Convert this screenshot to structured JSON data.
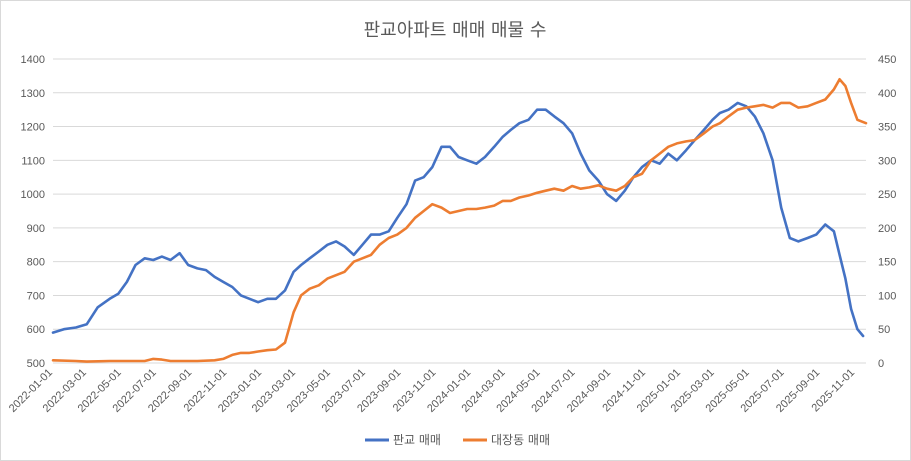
{
  "chart_data": {
    "type": "line",
    "title": "판교아파트 매매 매물 수",
    "xlabel": "",
    "ylabel": "",
    "grid": true,
    "legend_position": "bottom",
    "x_ticks": [
      "2022-01-01",
      "2022-03-01",
      "2022-05-01",
      "2022-07-01",
      "2022-09-01",
      "2022-11-01",
      "2023-01-01",
      "2023-03-01",
      "2023-05-01",
      "2023-07-01",
      "2023-09-01",
      "2023-11-01",
      "2024-01-01",
      "2024-03-01",
      "2024-05-01",
      "2024-07-01",
      "2024-09-01",
      "2024-11-01",
      "2025-01-01",
      "2025-03-01",
      "2025-05-01",
      "2025-07-01",
      "2025-09-01",
      "2025-11-01"
    ],
    "xlim": [
      "2022-01-01",
      "2025-11-20"
    ],
    "y_left": {
      "lim": [
        500,
        1400
      ],
      "ticks": [
        500,
        600,
        700,
        800,
        900,
        1000,
        1100,
        1200,
        1300,
        1400
      ]
    },
    "y_right": {
      "lim": [
        0,
        450
      ],
      "ticks": [
        0,
        50,
        100,
        150,
        200,
        250,
        300,
        350,
        400,
        450
      ]
    },
    "series": [
      {
        "name": "판교 매매",
        "axis": "left",
        "color": "#4472c4",
        "points": [
          [
            "2022-01-01",
            590
          ],
          [
            "2022-01-20",
            600
          ],
          [
            "2022-02-10",
            605
          ],
          [
            "2022-03-01",
            615
          ],
          [
            "2022-03-20",
            665
          ],
          [
            "2022-04-10",
            690
          ],
          [
            "2022-04-25",
            705
          ],
          [
            "2022-05-10",
            740
          ],
          [
            "2022-05-25",
            790
          ],
          [
            "2022-06-10",
            810
          ],
          [
            "2022-06-25",
            805
          ],
          [
            "2022-07-10",
            815
          ],
          [
            "2022-07-25",
            805
          ],
          [
            "2022-08-10",
            825
          ],
          [
            "2022-08-25",
            790
          ],
          [
            "2022-09-10",
            780
          ],
          [
            "2022-09-25",
            775
          ],
          [
            "2022-10-10",
            755
          ],
          [
            "2022-10-25",
            740
          ],
          [
            "2022-11-10",
            725
          ],
          [
            "2022-11-25",
            700
          ],
          [
            "2022-12-10",
            690
          ],
          [
            "2022-12-25",
            680
          ],
          [
            "2023-01-10",
            690
          ],
          [
            "2023-01-25",
            690
          ],
          [
            "2023-02-10",
            715
          ],
          [
            "2023-02-25",
            770
          ],
          [
            "2023-03-10",
            790
          ],
          [
            "2023-03-25",
            810
          ],
          [
            "2023-04-10",
            830
          ],
          [
            "2023-04-25",
            850
          ],
          [
            "2023-05-10",
            860
          ],
          [
            "2023-05-25",
            845
          ],
          [
            "2023-06-10",
            820
          ],
          [
            "2023-06-25",
            850
          ],
          [
            "2023-07-10",
            880
          ],
          [
            "2023-07-25",
            880
          ],
          [
            "2023-08-10",
            890
          ],
          [
            "2023-08-25",
            930
          ],
          [
            "2023-09-10",
            970
          ],
          [
            "2023-09-25",
            1040
          ],
          [
            "2023-10-10",
            1050
          ],
          [
            "2023-10-25",
            1080
          ],
          [
            "2023-11-10",
            1140
          ],
          [
            "2023-11-25",
            1140
          ],
          [
            "2023-12-10",
            1110
          ],
          [
            "2023-12-25",
            1100
          ],
          [
            "2024-01-10",
            1090
          ],
          [
            "2024-01-25",
            1110
          ],
          [
            "2024-02-10",
            1140
          ],
          [
            "2024-02-25",
            1170
          ],
          [
            "2024-03-10",
            1190
          ],
          [
            "2024-03-25",
            1210
          ],
          [
            "2024-04-10",
            1220
          ],
          [
            "2024-04-25",
            1250
          ],
          [
            "2024-05-10",
            1250
          ],
          [
            "2024-05-25",
            1230
          ],
          [
            "2024-06-10",
            1210
          ],
          [
            "2024-06-25",
            1180
          ],
          [
            "2024-07-10",
            1120
          ],
          [
            "2024-07-25",
            1070
          ],
          [
            "2024-08-10",
            1040
          ],
          [
            "2024-08-25",
            1000
          ],
          [
            "2024-09-10",
            980
          ],
          [
            "2024-09-25",
            1010
          ],
          [
            "2024-10-10",
            1050
          ],
          [
            "2024-10-25",
            1080
          ],
          [
            "2024-11-10",
            1100
          ],
          [
            "2024-11-25",
            1090
          ],
          [
            "2024-12-10",
            1120
          ],
          [
            "2024-12-25",
            1100
          ],
          [
            "2025-01-10",
            1130
          ],
          [
            "2025-01-25",
            1160
          ],
          [
            "2025-02-10",
            1190
          ],
          [
            "2025-02-25",
            1220
          ],
          [
            "2025-03-10",
            1240
          ],
          [
            "2025-03-25",
            1250
          ],
          [
            "2025-04-10",
            1270
          ],
          [
            "2025-04-25",
            1260
          ],
          [
            "2025-05-10",
            1230
          ],
          [
            "2025-05-25",
            1180
          ],
          [
            "2025-06-10",
            1100
          ],
          [
            "2025-06-25",
            960
          ],
          [
            "2025-07-10",
            870
          ],
          [
            "2025-07-25",
            860
          ],
          [
            "2025-08-10",
            870
          ],
          [
            "2025-08-25",
            880
          ],
          [
            "2025-09-10",
            910
          ],
          [
            "2025-09-25",
            890
          ],
          [
            "2025-10-05",
            820
          ],
          [
            "2025-10-15",
            750
          ],
          [
            "2025-10-25",
            660
          ],
          [
            "2025-11-05",
            600
          ],
          [
            "2025-11-15",
            580
          ]
        ]
      },
      {
        "name": "대장동 매매",
        "axis": "right",
        "color": "#ed7d31",
        "points": [
          [
            "2022-01-01",
            4
          ],
          [
            "2022-02-10",
            3
          ],
          [
            "2022-03-01",
            2
          ],
          [
            "2022-04-10",
            3
          ],
          [
            "2022-05-10",
            3
          ],
          [
            "2022-06-10",
            3
          ],
          [
            "2022-06-25",
            6
          ],
          [
            "2022-07-10",
            5
          ],
          [
            "2022-07-25",
            3
          ],
          [
            "2022-09-10",
            3
          ],
          [
            "2022-10-10",
            4
          ],
          [
            "2022-10-25",
            6
          ],
          [
            "2022-11-10",
            12
          ],
          [
            "2022-11-25",
            15
          ],
          [
            "2022-12-10",
            15
          ],
          [
            "2022-12-25",
            17
          ],
          [
            "2023-01-10",
            19
          ],
          [
            "2023-01-25",
            20
          ],
          [
            "2023-02-10",
            30
          ],
          [
            "2023-02-25",
            75
          ],
          [
            "2023-03-10",
            100
          ],
          [
            "2023-03-25",
            110
          ],
          [
            "2023-04-10",
            115
          ],
          [
            "2023-04-25",
            125
          ],
          [
            "2023-05-10",
            130
          ],
          [
            "2023-05-25",
            135
          ],
          [
            "2023-06-10",
            150
          ],
          [
            "2023-06-25",
            155
          ],
          [
            "2023-07-10",
            160
          ],
          [
            "2023-07-25",
            175
          ],
          [
            "2023-08-10",
            185
          ],
          [
            "2023-08-25",
            190
          ],
          [
            "2023-09-10",
            200
          ],
          [
            "2023-09-25",
            215
          ],
          [
            "2023-10-10",
            225
          ],
          [
            "2023-10-25",
            235
          ],
          [
            "2023-11-10",
            230
          ],
          [
            "2023-11-25",
            222
          ],
          [
            "2023-12-10",
            225
          ],
          [
            "2023-12-25",
            228
          ],
          [
            "2024-01-10",
            228
          ],
          [
            "2024-01-25",
            230
          ],
          [
            "2024-02-10",
            233
          ],
          [
            "2024-02-25",
            240
          ],
          [
            "2024-03-10",
            240
          ],
          [
            "2024-03-25",
            245
          ],
          [
            "2024-04-10",
            248
          ],
          [
            "2024-04-25",
            252
          ],
          [
            "2024-05-10",
            255
          ],
          [
            "2024-05-25",
            258
          ],
          [
            "2024-06-10",
            255
          ],
          [
            "2024-06-25",
            262
          ],
          [
            "2024-07-10",
            258
          ],
          [
            "2024-07-25",
            260
          ],
          [
            "2024-08-10",
            263
          ],
          [
            "2024-08-25",
            258
          ],
          [
            "2024-09-10",
            255
          ],
          [
            "2024-09-25",
            262
          ],
          [
            "2024-10-10",
            275
          ],
          [
            "2024-10-25",
            280
          ],
          [
            "2024-11-10",
            300
          ],
          [
            "2024-11-25",
            310
          ],
          [
            "2024-12-10",
            320
          ],
          [
            "2024-12-25",
            325
          ],
          [
            "2025-01-10",
            328
          ],
          [
            "2025-01-25",
            330
          ],
          [
            "2025-02-10",
            340
          ],
          [
            "2025-02-25",
            350
          ],
          [
            "2025-03-10",
            355
          ],
          [
            "2025-03-25",
            365
          ],
          [
            "2025-04-10",
            375
          ],
          [
            "2025-04-25",
            378
          ],
          [
            "2025-05-10",
            380
          ],
          [
            "2025-05-25",
            382
          ],
          [
            "2025-06-10",
            378
          ],
          [
            "2025-06-25",
            385
          ],
          [
            "2025-07-10",
            385
          ],
          [
            "2025-07-25",
            378
          ],
          [
            "2025-08-10",
            380
          ],
          [
            "2025-08-25",
            385
          ],
          [
            "2025-09-10",
            390
          ],
          [
            "2025-09-25",
            405
          ],
          [
            "2025-10-05",
            420
          ],
          [
            "2025-10-15",
            410
          ],
          [
            "2025-10-25",
            385
          ],
          [
            "2025-11-05",
            360
          ],
          [
            "2025-11-20",
            355
          ]
        ]
      }
    ]
  }
}
